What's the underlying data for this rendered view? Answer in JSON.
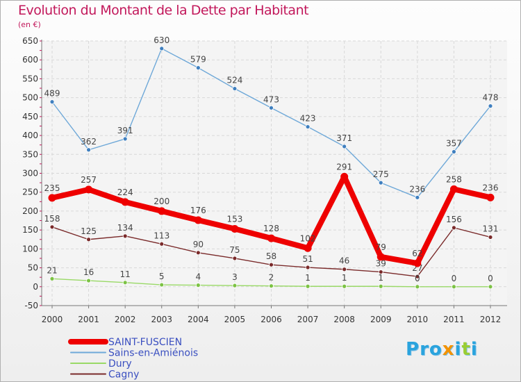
{
  "page": {
    "title": "Evolution du Montant de la Dette par Habitant",
    "unit": "(en €)"
  },
  "logo": {
    "text": "Proxiti"
  },
  "chart_data": {
    "type": "line",
    "x": [
      "2000",
      "2001",
      "2002",
      "2003",
      "2004",
      "2005",
      "2006",
      "2007",
      "2008",
      "2009",
      "2010",
      "2011",
      "2012"
    ],
    "ylim": [
      -50,
      650
    ],
    "yticks": [
      -50,
      0,
      50,
      100,
      150,
      200,
      250,
      300,
      350,
      400,
      450,
      500,
      550,
      600,
      650
    ],
    "grid": true,
    "legend_position": "bottom-left",
    "series": [
      {
        "name": "Sains-en-Amiénois",
        "color": "#6ea8d8",
        "marker": "#3f7fbf",
        "values": [
          489,
          362,
          391,
          630,
          579,
          524,
          473,
          423,
          371,
          275,
          236,
          357,
          478
        ],
        "labels": [
          "489",
          "362",
          "391",
          "630",
          "579",
          "524",
          "473",
          "423",
          "371",
          "275",
          "236",
          "357",
          "478"
        ]
      },
      {
        "name": "Cagny",
        "color": "#7a2a2a",
        "marker": "#7a2a2a",
        "values": [
          158,
          125,
          134,
          113,
          90,
          75,
          58,
          51,
          46,
          39,
          27,
          156,
          131
        ],
        "labels": [
          "158",
          "125",
          "134",
          "113",
          "90",
          "75",
          "58",
          "51",
          "46",
          "39",
          "27",
          "156",
          "131"
        ]
      },
      {
        "name": "Dury",
        "color": "#99d966",
        "marker": "#7cc244",
        "values": [
          21,
          16,
          11,
          5,
          4,
          3,
          2,
          1,
          1,
          1,
          0,
          0,
          0
        ],
        "labels": [
          "21",
          "16",
          "11",
          "5",
          "4",
          "3",
          "2",
          "1",
          "1",
          "1",
          "0",
          "0",
          "0"
        ]
      },
      {
        "name": "SAINT-FUSCIEN",
        "color": "#ee0000",
        "marker": "#ee0000",
        "values": [
          235,
          257,
          224,
          200,
          176,
          153,
          128,
          102,
          291,
          79,
          62,
          258,
          236
        ],
        "labels": [
          "235",
          "257",
          "224",
          "200",
          "176",
          "153",
          "128",
          "102",
          "291",
          "79",
          "62",
          "258",
          "236"
        ]
      }
    ],
    "legend": [
      {
        "name": "SAINT-FUSCIEN",
        "color": "#ee0000",
        "width": "thick"
      },
      {
        "name": "Sains-en-Amiénois",
        "color": "#6ea8d8",
        "width": "thin"
      },
      {
        "name": "Dury",
        "color": "#99d966",
        "width": "thin"
      },
      {
        "name": "Cagny",
        "color": "#7a2a2a",
        "width": "thin"
      }
    ]
  }
}
